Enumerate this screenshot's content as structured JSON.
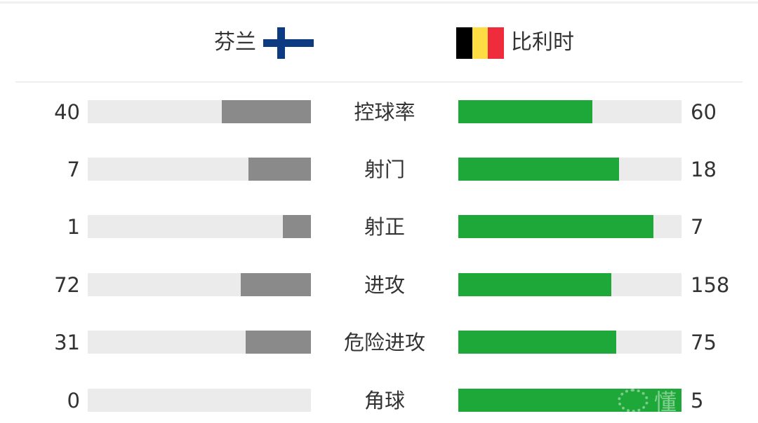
{
  "header": {
    "left_team": {
      "name": "芬兰",
      "flag_icon": "finland-flag-icon",
      "flag_colors": [
        "#ffffff",
        "#0d3b82"
      ]
    },
    "right_team": {
      "name": "比利时",
      "flag_icon": "belgium-flag-icon",
      "flag_colors": [
        "#000000",
        "#fddc44",
        "#ee2c3c"
      ]
    }
  },
  "colors": {
    "left_bar": "#8a8a8a",
    "right_bar": "#1fa83a",
    "track": "#ebebeb"
  },
  "chart_data": {
    "type": "bar",
    "orientation": "horizontal-diverging",
    "categories": [
      "控球率",
      "射门",
      "射正",
      "进攻",
      "危险进攻",
      "角球"
    ],
    "series": [
      {
        "name": "芬兰",
        "values": [
          40,
          7,
          1,
          72,
          31,
          0
        ]
      },
      {
        "name": "比利时",
        "values": [
          60,
          18,
          7,
          158,
          75,
          5
        ]
      }
    ]
  },
  "watermark": {
    "text": "懂",
    "icon": "soccer-ball-icon"
  }
}
